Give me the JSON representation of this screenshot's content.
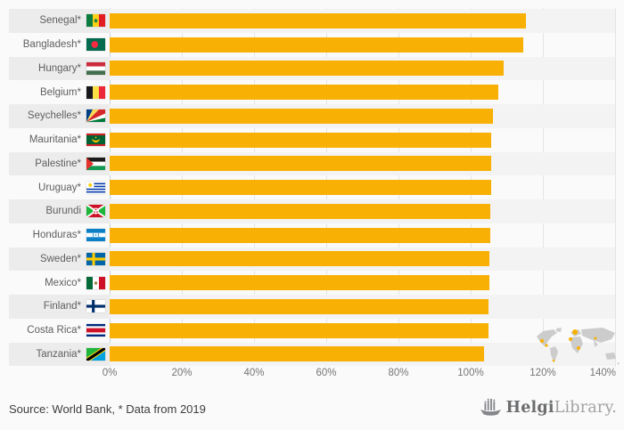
{
  "chart_data": {
    "type": "bar",
    "orientation": "horizontal",
    "title": "",
    "xlabel": "",
    "ylabel": "",
    "xlim": [
      0,
      140
    ],
    "grid": true,
    "unit": "%",
    "x_ticks": [
      {
        "label": "0%",
        "value": 0
      },
      {
        "label": "20%",
        "value": 20
      },
      {
        "label": "40%",
        "value": 40
      },
      {
        "label": "60%",
        "value": 60
      },
      {
        "label": "80%",
        "value": 80
      },
      {
        "label": "100%",
        "value": 100
      },
      {
        "label": "120%",
        "value": 120
      },
      {
        "label": "140%",
        "value": 140
      }
    ],
    "categories": [
      "Senegal*",
      "Bangladesh*",
      "Hungary*",
      "Belgium*",
      "Seychelles*",
      "Mauritania*",
      "Palestine*",
      "Uruguay*",
      "Burundi",
      "Honduras*",
      "Sweden*",
      "Mexico*",
      "Finland*",
      "Costa Rica*",
      "Tanzania*"
    ],
    "values": [
      115.2,
      114.5,
      109.2,
      107.7,
      106.1,
      105.8,
      105.7,
      105.6,
      105.5,
      105.4,
      105.2,
      105.1,
      105.0,
      104.9,
      103.7
    ],
    "bars": [
      {
        "label": "Senegal*",
        "flag": "senegal",
        "value": 115.2
      },
      {
        "label": "Bangladesh*",
        "flag": "bangladesh",
        "value": 114.5
      },
      {
        "label": "Hungary*",
        "flag": "hungary",
        "value": 109.2
      },
      {
        "label": "Belgium*",
        "flag": "belgium",
        "value": 107.7
      },
      {
        "label": "Seychelles*",
        "flag": "seychelles",
        "value": 106.1
      },
      {
        "label": "Mauritania*",
        "flag": "mauritania",
        "value": 105.8
      },
      {
        "label": "Palestine*",
        "flag": "palestine",
        "value": 105.7
      },
      {
        "label": "Uruguay*",
        "flag": "uruguay",
        "value": 105.6
      },
      {
        "label": "Burundi",
        "flag": "burundi",
        "value": 105.5
      },
      {
        "label": "Honduras*",
        "flag": "honduras",
        "value": 105.4
      },
      {
        "label": "Sweden*",
        "flag": "sweden",
        "value": 105.2
      },
      {
        "label": "Mexico*",
        "flag": "mexico",
        "value": 105.1
      },
      {
        "label": "Finland*",
        "flag": "finland",
        "value": 105.0
      },
      {
        "label": "Costa Rica*",
        "flag": "costa_rica",
        "value": 104.9
      },
      {
        "label": "Tanzania*",
        "flag": "tanzania",
        "value": 103.7
      }
    ],
    "legend": null
  },
  "colors": {
    "bar": "#f9b005",
    "band_label": "#ececec",
    "band_plot": "#f3f3f3",
    "grid": "#e4e4e4",
    "zero_line": "#ccd3dd",
    "axis_text": "#757575",
    "label_text": "#5f5f5f",
    "source_text": "#3d3d3d",
    "map_gray": "#cccccc",
    "map_highlight": "#f9b005",
    "logo_dark": "#6c6d6f",
    "logo_light": "#a2a2a2",
    "background": "#fafafa"
  },
  "footer": {
    "source_note": "Source: World Bank, * Data from 2019",
    "logo": {
      "bold": "Helgi",
      "light": "Library."
    }
  }
}
